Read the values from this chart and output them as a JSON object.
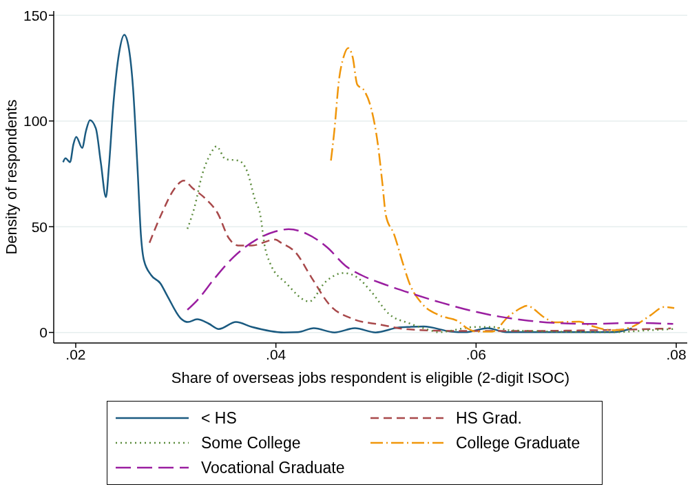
{
  "chart_data": {
    "type": "line",
    "xlabel": "Share of overseas jobs respondent is eligible (2-digit ISOC)",
    "ylabel": "Density of respondents",
    "xlim": [
      0.0178,
      0.0811
    ],
    "ylim": [
      -5,
      152
    ],
    "xticks": [
      {
        "value": 0.02,
        "label": ".02"
      },
      {
        "value": 0.04,
        "label": ".04"
      },
      {
        "value": 0.06,
        "label": ".06"
      },
      {
        "value": 0.08,
        "label": ".08"
      }
    ],
    "yticks": [
      0,
      50,
      100,
      150
    ],
    "grid": "y",
    "legend": "bottom",
    "series": [
      {
        "name": "< HS",
        "color": "#1a5a80",
        "line_style": "solid",
        "x": [
          0.01874,
          0.01897,
          0.01943,
          0.01977,
          0.02005,
          0.02064,
          0.02103,
          0.02142,
          0.02201,
          0.02251,
          0.02302,
          0.02331,
          0.02377,
          0.02434,
          0.02485,
          0.02526,
          0.02572,
          0.02617,
          0.02652,
          0.02681,
          0.02755,
          0.02846,
          0.02915,
          0.03052,
          0.03121,
          0.03212,
          0.03327,
          0.03429,
          0.03601,
          0.03761,
          0.0408,
          0.04218,
          0.04379,
          0.04585,
          0.0479,
          0.04996,
          0.05225,
          0.05339,
          0.05476,
          0.05751,
          0.05888,
          0.06117,
          0.063,
          0.07374,
          0.07557
        ],
        "values": [
          80.5,
          82.4,
          80.5,
          89,
          92.5,
          87.3,
          95.4,
          100.4,
          96.5,
          80.2,
          64,
          78,
          108.5,
          132.4,
          140.8,
          135.6,
          116,
          78,
          45.6,
          34.2,
          27,
          23.2,
          17.3,
          6.5,
          4.9,
          6.2,
          4.2,
          1.6,
          4.9,
          2.6,
          0,
          0.1,
          2,
          0,
          2,
          0,
          2.3,
          2.6,
          2.8,
          0.4,
          0.1,
          2,
          0.1,
          0.1,
          1.9
        ]
      },
      {
        "name": "HS Grad.",
        "color": "#a8484a",
        "line_style": "dashed",
        "x": [
          0.02737,
          0.0287,
          0.02984,
          0.0308,
          0.03166,
          0.03304,
          0.03418,
          0.03532,
          0.03624,
          0.03761,
          0.0399,
          0.04058,
          0.04196,
          0.04355,
          0.04539,
          0.04767,
          0.05041,
          0.05316,
          0.05774,
          0.0646,
          0.07374,
          0.07946
        ],
        "values": [
          42.4,
          57.4,
          67.8,
          71.8,
          68.3,
          62.9,
          56.4,
          44.4,
          41.1,
          41.1,
          43.9,
          42.2,
          37.9,
          26,
          12.9,
          6.4,
          3.7,
          1.5,
          0.7,
          0.7,
          1.2,
          1.9
        ]
      },
      {
        "name": "Some College",
        "color": "#5a8a3a",
        "line_style": "dotted",
        "x": [
          0.03116,
          0.03189,
          0.03258,
          0.03349,
          0.03406,
          0.03498,
          0.03624,
          0.03715,
          0.03784,
          0.03853,
          0.03876,
          0.03944,
          0.04105,
          0.04333,
          0.04493,
          0.04676,
          0.04813,
          0.0495,
          0.05133,
          0.05339,
          0.05545,
          0.05613,
          0.06002,
          0.06162,
          0.06345,
          0.07374,
          0.07717,
          0.07969
        ],
        "values": [
          49,
          59.6,
          73.7,
          84.6,
          88,
          81.9,
          81.3,
          75.9,
          63.9,
          53.1,
          44.4,
          32.5,
          23.2,
          14.6,
          23.8,
          28.1,
          26,
          19.4,
          8.6,
          4.2,
          1,
          0.1,
          2.6,
          2.6,
          1,
          0.1,
          1,
          1.6
        ]
      },
      {
        "name": "College Graduate",
        "color": "#f0960a",
        "line_style": "dashdot",
        "x": [
          0.0455,
          0.04584,
          0.0463,
          0.04676,
          0.04722,
          0.04767,
          0.04813,
          0.04882,
          0.0495,
          0.05019,
          0.05064,
          0.05099,
          0.05179,
          0.0527,
          0.05339,
          0.05453,
          0.05636,
          0.05819,
          0.0591,
          0.06002,
          0.06162,
          0.06323,
          0.0646,
          0.06505,
          0.06688,
          0.0678,
          0.07031,
          0.07146,
          0.07374,
          0.07557,
          0.0774,
          0.07877,
          0.0798
        ],
        "values": [
          81.3,
          95.4,
          119.3,
          130.2,
          134.5,
          130.2,
          117.2,
          114.4,
          106.3,
          88.9,
          70.5,
          55.3,
          46.6,
          32.5,
          22.7,
          14,
          8,
          5.3,
          2,
          0.4,
          0.4,
          7.5,
          11.8,
          12.6,
          6.9,
          4.8,
          5.1,
          3.2,
          1,
          2.6,
          8,
          12,
          11.5
        ]
      },
      {
        "name": "Vocational Graduate",
        "color": "#9a1ea0",
        "line_style": "longdash",
        "x": [
          0.03116,
          0.03212,
          0.03395,
          0.03578,
          0.03806,
          0.0399,
          0.04127,
          0.0431,
          0.04515,
          0.04698,
          0.04858,
          0.05087,
          0.05362,
          0.05659,
          0.05956,
          0.06231,
          0.06574,
          0.07146,
          0.07603,
          0.07969
        ],
        "values": [
          10.7,
          15.1,
          26,
          35.7,
          43.9,
          47.7,
          48.8,
          46.6,
          40.1,
          31.4,
          27,
          22.7,
          18.3,
          14,
          10.2,
          7.5,
          5.3,
          4,
          4.5,
          4
        ]
      }
    ]
  }
}
